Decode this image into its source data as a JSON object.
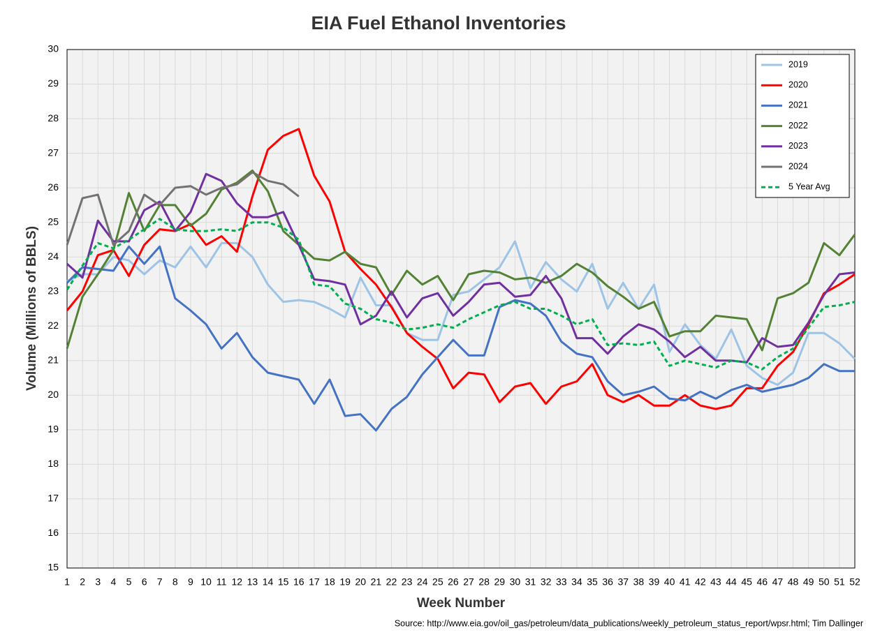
{
  "chart_data": {
    "type": "line",
    "title": "EIA Fuel Ethanol Inventories",
    "x_label": "Week Number",
    "y_label": "Volume (Millions of BBLS)",
    "source": "Source: http://www.eia.gov/oil_gas/petroleum/data_publications/weekly_petroleum_status_report/wpsr.html; Tim Dallinger",
    "x": [
      1,
      2,
      3,
      4,
      5,
      6,
      7,
      8,
      9,
      10,
      11,
      12,
      13,
      14,
      15,
      16,
      17,
      18,
      19,
      20,
      21,
      22,
      23,
      24,
      25,
      26,
      27,
      28,
      29,
      30,
      31,
      32,
      33,
      34,
      35,
      36,
      37,
      38,
      39,
      40,
      41,
      42,
      43,
      44,
      45,
      46,
      47,
      48,
      49,
      50,
      51,
      52
    ],
    "xlim": [
      1,
      52
    ],
    "xticks": [
      1,
      2,
      3,
      4,
      5,
      6,
      7,
      8,
      9,
      10,
      11,
      12,
      13,
      14,
      15,
      16,
      17,
      18,
      19,
      20,
      21,
      22,
      23,
      24,
      25,
      26,
      27,
      28,
      29,
      30,
      31,
      32,
      33,
      34,
      35,
      36,
      37,
      38,
      39,
      40,
      41,
      42,
      43,
      44,
      45,
      46,
      47,
      48,
      49,
      50,
      51,
      52
    ],
    "ylim": [
      15,
      30
    ],
    "yticks": [
      15,
      16,
      17,
      18,
      19,
      20,
      21,
      22,
      23,
      24,
      25,
      26,
      27,
      28,
      29,
      30
    ],
    "grid": true,
    "legend": "upper right",
    "series": [
      {
        "name": "2019",
        "color": "#9dc3e6",
        "values": [
          23.3,
          23.5,
          23.5,
          24.0,
          23.9,
          23.5,
          23.9,
          23.7,
          24.3,
          23.7,
          24.4,
          24.4,
          24.0,
          23.2,
          22.7,
          22.75,
          22.7,
          22.5,
          22.25,
          23.4,
          22.6,
          22.6,
          21.8,
          21.6,
          21.6,
          22.9,
          23.0,
          23.35,
          23.7,
          24.45,
          23.1,
          23.85,
          23.35,
          23.0,
          23.8,
          22.5,
          23.25,
          22.5,
          23.2,
          21.25,
          22.05,
          21.45,
          21.05,
          21.9,
          20.85,
          20.5,
          20.3,
          20.65,
          21.8,
          21.8,
          21.5,
          21.05
        ]
      },
      {
        "name": "2020",
        "color": "#ff0000",
        "values": [
          22.45,
          23.0,
          24.05,
          24.2,
          23.45,
          24.35,
          24.8,
          24.75,
          24.95,
          24.35,
          24.6,
          24.15,
          25.75,
          27.1,
          27.5,
          27.7,
          26.35,
          25.6,
          24.15,
          23.65,
          23.2,
          22.55,
          21.8,
          21.4,
          21.05,
          20.2,
          20.65,
          20.6,
          19.8,
          20.25,
          20.35,
          19.75,
          20.25,
          20.4,
          20.9,
          20.0,
          19.8,
          20.0,
          19.7,
          19.7,
          20.0,
          19.7,
          19.6,
          19.7,
          20.2,
          20.2,
          20.85,
          21.25,
          22.05,
          22.95,
          23.2,
          23.5
        ]
      },
      {
        "name": "2021",
        "color": "#4472c4",
        "values": [
          23.25,
          23.7,
          23.65,
          23.6,
          24.3,
          23.8,
          24.3,
          22.8,
          22.45,
          22.05,
          21.35,
          21.8,
          21.1,
          20.65,
          20.55,
          20.45,
          19.75,
          20.45,
          19.4,
          19.45,
          18.98,
          19.6,
          19.95,
          20.6,
          21.1,
          21.6,
          21.15,
          21.15,
          22.55,
          22.75,
          22.65,
          22.3,
          21.55,
          21.2,
          21.1,
          20.4,
          20.0,
          20.1,
          20.25,
          19.9,
          19.85,
          20.1,
          19.9,
          20.15,
          20.3,
          20.1,
          20.2,
          20.3,
          20.5,
          20.9,
          20.7,
          20.7
        ]
      },
      {
        "name": "2022",
        "color": "#548235",
        "values": [
          21.35,
          22.85,
          23.5,
          24.2,
          25.85,
          24.75,
          25.5,
          25.5,
          24.9,
          25.25,
          25.95,
          26.15,
          26.5,
          25.9,
          24.75,
          24.35,
          23.95,
          23.9,
          24.15,
          23.8,
          23.7,
          22.9,
          23.6,
          23.2,
          23.45,
          22.75,
          23.5,
          23.6,
          23.55,
          23.35,
          23.4,
          23.25,
          23.45,
          23.8,
          23.55,
          23.15,
          22.85,
          22.5,
          22.7,
          21.7,
          21.85,
          21.85,
          22.3,
          22.25,
          22.2,
          21.3,
          22.8,
          22.95,
          23.25,
          24.4,
          24.05,
          24.65
        ]
      },
      {
        "name": "2023",
        "color": "#7030a0",
        "values": [
          23.8,
          23.4,
          25.05,
          24.45,
          24.45,
          25.35,
          25.6,
          24.75,
          25.3,
          26.4,
          26.2,
          25.55,
          25.15,
          25.15,
          25.3,
          24.35,
          23.35,
          23.3,
          23.2,
          22.05,
          22.3,
          23.0,
          22.25,
          22.8,
          22.95,
          22.3,
          22.7,
          23.2,
          23.25,
          22.85,
          22.9,
          23.45,
          22.8,
          21.65,
          21.65,
          21.2,
          21.7,
          22.05,
          21.9,
          21.55,
          21.1,
          21.4,
          21.0,
          21.0,
          20.95,
          21.65,
          21.4,
          21.45,
          22.1,
          22.9,
          23.5,
          23.55
        ]
      },
      {
        "name": "2024",
        "color": "#767171",
        "values": [
          24.35,
          25.7,
          25.8,
          24.35,
          24.75,
          25.8,
          25.5,
          26.0,
          26.05,
          25.8,
          26.0,
          26.1,
          26.45,
          26.2,
          26.1,
          25.75,
          null,
          null,
          null,
          null,
          null,
          null,
          null,
          null,
          null,
          null,
          null,
          null,
          null,
          null,
          null,
          null,
          null,
          null,
          null,
          null,
          null,
          null,
          null,
          null,
          null,
          null,
          null,
          null,
          null,
          null,
          null,
          null,
          null,
          null,
          null,
          null
        ]
      },
      {
        "name": "5 Year Avg",
        "color": "#00b050",
        "dashed": true,
        "values": [
          23.05,
          23.75,
          24.4,
          24.25,
          24.5,
          24.8,
          25.1,
          24.8,
          24.75,
          24.75,
          24.8,
          24.75,
          25.0,
          25.0,
          24.85,
          24.5,
          23.2,
          23.15,
          22.65,
          22.5,
          22.2,
          22.1,
          21.9,
          21.95,
          22.05,
          21.95,
          22.2,
          22.4,
          22.6,
          22.7,
          22.5,
          22.5,
          22.3,
          22.05,
          22.2,
          21.45,
          21.5,
          21.45,
          21.55,
          20.85,
          21.0,
          20.9,
          20.8,
          21.0,
          20.95,
          20.75,
          21.1,
          21.35,
          21.95,
          22.55,
          22.6,
          22.7
        ]
      }
    ]
  }
}
